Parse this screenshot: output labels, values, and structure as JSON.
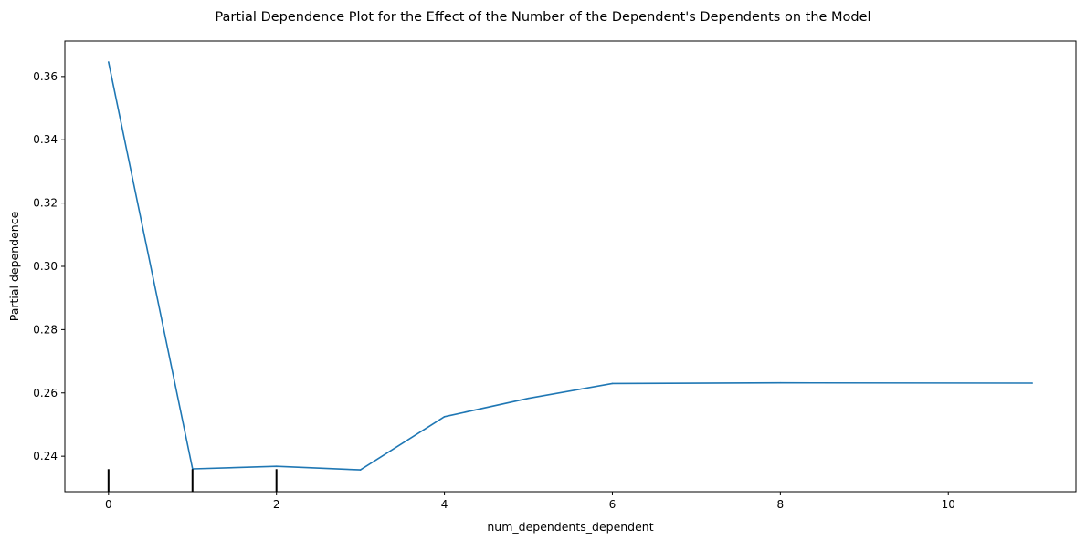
{
  "chart_data": {
    "type": "line",
    "title": "Partial Dependence Plot for the Effect of the Number of the Dependent's Dependents on the Model",
    "xlabel": "num_dependents_dependent",
    "ylabel": "Partial dependence",
    "xlim": [
      -0.52,
      11.52
    ],
    "ylim": [
      0.2288,
      0.3712
    ],
    "xticks": [
      0,
      2,
      4,
      6,
      8,
      10
    ],
    "xtick_labels": [
      "0",
      "2",
      "4",
      "6",
      "8",
      "10"
    ],
    "yticks": [
      0.24,
      0.26,
      0.28,
      0.3,
      0.32,
      0.34,
      0.36
    ],
    "ytick_labels": [
      "0.24",
      "0.26",
      "0.28",
      "0.30",
      "0.32",
      "0.34",
      "0.36"
    ],
    "grid": false,
    "series": [
      {
        "color": "#1f77b4",
        "x": [
          0,
          1,
          2,
          3,
          4,
          5,
          6,
          8,
          11
        ],
        "y": [
          0.3646,
          0.236,
          0.2368,
          0.2357,
          0.2525,
          0.2583,
          0.263,
          0.2632,
          0.2631
        ]
      }
    ],
    "rug": {
      "color": "#000000",
      "x": [
        0,
        1,
        2
      ]
    }
  }
}
